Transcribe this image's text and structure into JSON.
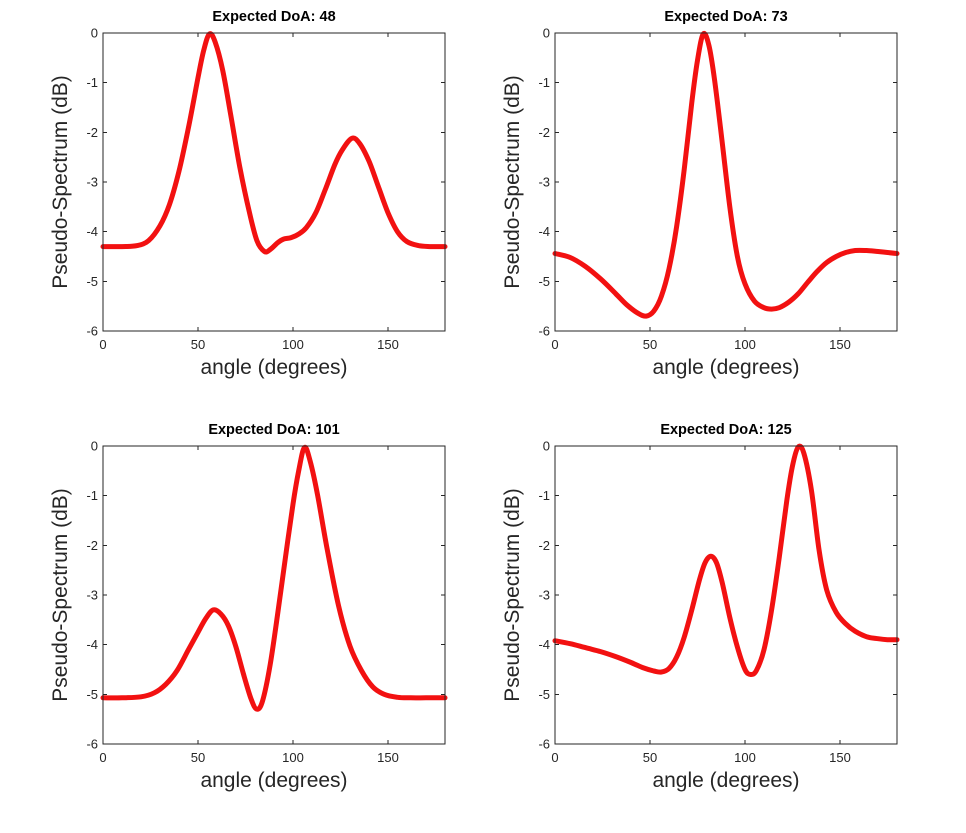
{
  "figure": {
    "background": "#ffffff",
    "axes_style": {
      "box_color": "#262626",
      "tick_color": "#262626",
      "tick_label_color": "#262626",
      "title_color": "#000000",
      "axis_label_color": "#262626",
      "tick_direction": "in",
      "grid": "off",
      "legend": "none"
    },
    "line_style": {
      "color": "#f21111",
      "width": 5
    }
  },
  "chart_data": [
    {
      "type": "line",
      "title": "Expected DoA: 48",
      "xlabel": "angle (degrees)",
      "ylabel": "Pseudo-Spectrum (dB)",
      "xlim": [
        0,
        180
      ],
      "ylim": [
        -6,
        0
      ],
      "xticks": [
        0,
        50,
        100,
        150
      ],
      "yticks": [
        0,
        -1,
        -2,
        -3,
        -4,
        -5,
        -6
      ],
      "series": [
        {
          "name": "pseudo-spectrum",
          "color": "#f21111",
          "x": [
            0,
            10,
            18,
            24,
            30,
            35,
            40,
            45,
            50,
            53,
            56,
            59,
            63,
            67,
            72,
            77,
            81,
            85,
            88,
            92,
            95,
            99,
            103,
            107,
            112,
            117,
            122,
            126,
            131,
            135,
            140,
            145,
            150,
            155,
            160,
            166,
            172,
            180
          ],
          "y": [
            -4.3,
            -4.3,
            -4.28,
            -4.18,
            -3.88,
            -3.45,
            -2.78,
            -1.9,
            -0.9,
            -0.35,
            -0.02,
            -0.18,
            -0.75,
            -1.6,
            -2.7,
            -3.6,
            -4.18,
            -4.4,
            -4.36,
            -4.22,
            -4.15,
            -4.12,
            -4.05,
            -3.92,
            -3.62,
            -3.15,
            -2.65,
            -2.35,
            -2.12,
            -2.22,
            -2.58,
            -3.1,
            -3.62,
            -4.0,
            -4.2,
            -4.28,
            -4.3,
            -4.3
          ]
        }
      ]
    },
    {
      "type": "line",
      "title": "Expected DoA: 73",
      "xlabel": "angle (degrees)",
      "ylabel": "Pseudo-Spectrum (dB)",
      "xlim": [
        0,
        180
      ],
      "ylim": [
        -6,
        0
      ],
      "xticks": [
        0,
        50,
        100,
        150
      ],
      "yticks": [
        0,
        -1,
        -2,
        -3,
        -4,
        -5,
        -6
      ],
      "series": [
        {
          "name": "pseudo-spectrum",
          "color": "#f21111",
          "x": [
            0,
            8,
            16,
            24,
            32,
            38,
            44,
            48,
            52,
            56,
            60,
            64,
            68,
            72,
            75,
            78,
            81,
            84,
            88,
            92,
            96,
            100,
            105,
            110,
            114,
            118,
            123,
            128,
            133,
            138,
            143,
            148,
            153,
            158,
            164,
            170,
            175,
            180
          ],
          "y": [
            -4.44,
            -4.52,
            -4.7,
            -4.95,
            -5.25,
            -5.48,
            -5.65,
            -5.7,
            -5.6,
            -5.3,
            -4.75,
            -3.9,
            -2.75,
            -1.4,
            -0.55,
            -0.02,
            -0.25,
            -0.95,
            -2.2,
            -3.5,
            -4.5,
            -5.05,
            -5.4,
            -5.53,
            -5.56,
            -5.53,
            -5.42,
            -5.25,
            -5.02,
            -4.8,
            -4.62,
            -4.5,
            -4.42,
            -4.38,
            -4.38,
            -4.4,
            -4.42,
            -4.44
          ]
        }
      ]
    },
    {
      "type": "line",
      "title": "Expected DoA: 101",
      "xlabel": "angle (degrees)",
      "ylabel": "Pseudo-Spectrum (dB)",
      "xlim": [
        0,
        180
      ],
      "ylim": [
        -6,
        0
      ],
      "xticks": [
        0,
        50,
        100,
        150
      ],
      "yticks": [
        0,
        -1,
        -2,
        -3,
        -4,
        -5,
        -6
      ],
      "series": [
        {
          "name": "pseudo-spectrum",
          "color": "#f21111",
          "x": [
            0,
            10,
            20,
            27,
            33,
            39,
            45,
            50,
            54,
            58,
            62,
            66,
            70,
            74,
            78,
            81,
            84,
            88,
            92,
            96,
            100,
            103,
            106,
            109,
            113,
            118,
            124,
            130,
            136,
            142,
            148,
            155,
            162,
            170,
            180
          ],
          "y": [
            -5.07,
            -5.07,
            -5.05,
            -4.97,
            -4.8,
            -4.52,
            -4.1,
            -3.75,
            -3.48,
            -3.3,
            -3.38,
            -3.62,
            -4.05,
            -4.6,
            -5.1,
            -5.3,
            -5.13,
            -4.4,
            -3.36,
            -2.25,
            -1.17,
            -0.5,
            -0.03,
            -0.3,
            -1.0,
            -2.08,
            -3.22,
            -4.03,
            -4.52,
            -4.85,
            -5.0,
            -5.06,
            -5.07,
            -5.07,
            -5.07
          ]
        }
      ]
    },
    {
      "type": "line",
      "title": "Expected DoA: 125",
      "xlabel": "angle (degrees)",
      "ylabel": "Pseudo-Spectrum (dB)",
      "xlim": [
        0,
        180
      ],
      "ylim": [
        -6,
        0
      ],
      "xticks": [
        0,
        50,
        100,
        150
      ],
      "yticks": [
        0,
        -1,
        -2,
        -3,
        -4,
        -5,
        -6
      ],
      "series": [
        {
          "name": "pseudo-spectrum",
          "color": "#f21111",
          "x": [
            0,
            8,
            16,
            24,
            32,
            40,
            46,
            52,
            56,
            60,
            64,
            68,
            72,
            76,
            79,
            82,
            85,
            88,
            92,
            96,
            100,
            103,
            106,
            110,
            114,
            118,
            122,
            125,
            128,
            131,
            135,
            139,
            143,
            148,
            153,
            158,
            164,
            170,
            175,
            180
          ],
          "y": [
            -3.92,
            -3.98,
            -4.06,
            -4.14,
            -4.24,
            -4.36,
            -4.46,
            -4.53,
            -4.55,
            -4.48,
            -4.25,
            -3.85,
            -3.3,
            -2.7,
            -2.35,
            -2.22,
            -2.35,
            -2.75,
            -3.45,
            -4.05,
            -4.5,
            -4.6,
            -4.52,
            -4.1,
            -3.3,
            -2.25,
            -1.1,
            -0.4,
            -0.02,
            -0.15,
            -0.9,
            -2.1,
            -2.9,
            -3.35,
            -3.58,
            -3.73,
            -3.84,
            -3.88,
            -3.9,
            -3.9
          ]
        }
      ]
    }
  ],
  "layout_hint": {
    "grid": [
      2,
      2
    ]
  }
}
